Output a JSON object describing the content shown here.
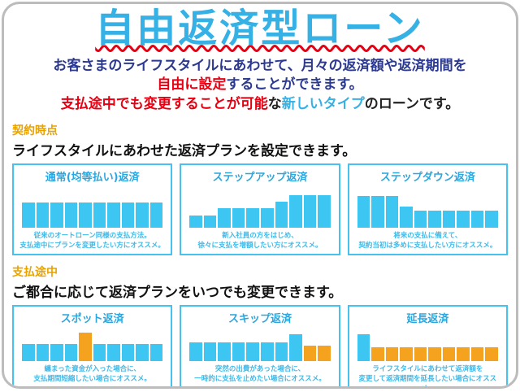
{
  "page": {
    "title": "自由返済型ローン",
    "intro": {
      "line1": "お客さまのライフスタイルにあわせて、月々の返済額や返済期間を",
      "line2_red": "自由に設定",
      "line2_rest": "することができます。",
      "line3_red": "支払途中でも変更することが可能",
      "line3_na": "な",
      "line3_cyan": "新しいタイプ",
      "line3_rest": "のローンです。"
    },
    "sections": [
      {
        "label": "契約時点",
        "heading": "ライフスタイルにあわせた返済プランを設定できます。"
      },
      {
        "label": "支払途中",
        "heading": "ご都合に応じて返済プランをいつでも変更できます。"
      }
    ]
  },
  "palette": {
    "cyan": "#3ec6f2",
    "orange": "#f5a21f"
  },
  "chart_data": [
    {
      "type": "bar",
      "title": "通常(均等払い)返済",
      "values": [
        62,
        62,
        62,
        62,
        62,
        62,
        62,
        62,
        62,
        62
      ],
      "colors": [
        "cyan",
        "cyan",
        "cyan",
        "cyan",
        "cyan",
        "cyan",
        "cyan",
        "cyan",
        "cyan",
        "cyan"
      ],
      "caption": [
        "従来のオートローン同様の支払方法。",
        "支払途中にプランを変更したい方にオススメ。"
      ]
    },
    {
      "type": "bar",
      "title": "ステップアップ返済",
      "values": [
        30,
        30,
        48,
        48,
        48,
        48,
        64,
        80,
        80,
        80
      ],
      "colors": [
        "cyan",
        "cyan",
        "cyan",
        "cyan",
        "cyan",
        "cyan",
        "cyan",
        "cyan",
        "cyan",
        "cyan"
      ],
      "caption": [
        "新入社員の方をはじめ、",
        "徐々に支払を増額したい方にオススメ。"
      ]
    },
    {
      "type": "bar",
      "title": "ステップダウン返済",
      "values": [
        78,
        78,
        78,
        52,
        42,
        42,
        42,
        42,
        42,
        42
      ],
      "colors": [
        "cyan",
        "cyan",
        "cyan",
        "cyan",
        "cyan",
        "cyan",
        "cyan",
        "cyan",
        "cyan",
        "cyan"
      ],
      "caption": [
        "将来の支払に備えて、",
        "契約当初は多めに支払したい方にオススメ。"
      ]
    },
    {
      "type": "bar",
      "title": "スポット返済",
      "values": [
        52,
        52,
        52,
        52,
        88,
        52,
        52,
        52,
        52,
        52
      ],
      "colors": [
        "cyan",
        "cyan",
        "cyan",
        "cyan",
        "orange",
        "cyan",
        "cyan",
        "cyan",
        "cyan",
        "cyan"
      ],
      "caption": [
        "纏まった資金が入った場合に、",
        "支払期間短縮したい場合にオススメ。"
      ]
    },
    {
      "type": "bar",
      "title": "スキップ返済",
      "values": [
        56,
        56,
        56,
        56,
        56,
        56,
        56,
        82,
        46,
        46
      ],
      "colors": [
        "cyan",
        "cyan",
        "cyan",
        "cyan",
        "cyan",
        "cyan",
        "cyan",
        "cyan",
        "orange",
        "orange"
      ],
      "caption": [
        "突然の出費があった場合に、",
        "一時的に支払を止めたい場合にオススメ。"
      ]
    },
    {
      "type": "bar",
      "title": "延長返済",
      "values": [
        82,
        42,
        42,
        42,
        42,
        42,
        42,
        42,
        42,
        42
      ],
      "colors": [
        "cyan",
        "orange",
        "orange",
        "orange",
        "orange",
        "orange",
        "orange",
        "orange",
        "orange",
        "orange"
      ],
      "caption": [
        "ライフスタイルにあわせて返済額を",
        "変更して返済期間を延長したい場合にオススメ。"
      ]
    }
  ]
}
